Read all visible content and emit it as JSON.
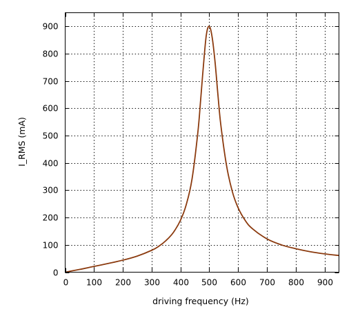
{
  "chart_data": {
    "type": "line",
    "title": "",
    "xlabel": "driving frequency (Hz)",
    "ylabel": "I_RMS (mA)",
    "xlim": [
      0,
      950
    ],
    "ylim": [
      0,
      950
    ],
    "x_ticks": [
      0,
      100,
      200,
      300,
      400,
      500,
      600,
      700,
      800,
      900
    ],
    "y_ticks": [
      0,
      100,
      200,
      300,
      400,
      500,
      600,
      700,
      800,
      900
    ],
    "grid": true,
    "legend": "none",
    "series": [
      {
        "color": "#8b3a0e",
        "x": [
          0,
          50,
          100,
          150,
          200,
          250,
          300,
          325,
          350,
          375,
          400,
          420,
          440,
          460,
          470,
          480,
          490,
          500,
          510,
          520,
          530,
          540,
          560,
          580,
          600,
          625,
          650,
          700,
          750,
          800,
          850,
          900,
          950
        ],
        "y": [
          0,
          10,
          21,
          32,
          44,
          59,
          80,
          95,
          116,
          145,
          190,
          247,
          340,
          508,
          630,
          760,
          870,
          900,
          860,
          770,
          650,
          540,
          390,
          295,
          236,
          189,
          159,
          122,
          100,
          86,
          75,
          67,
          61
        ]
      }
    ]
  }
}
